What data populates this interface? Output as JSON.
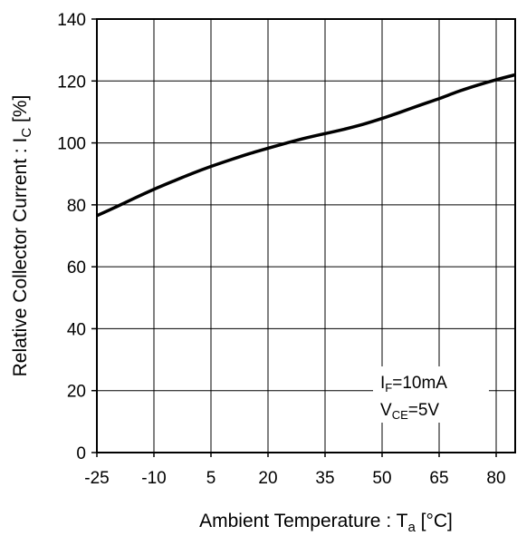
{
  "chart_data": {
    "type": "line",
    "title": "",
    "xlabel": {
      "main": "Ambient Temperature : T",
      "sub": "a",
      "unit": " [°C]"
    },
    "ylabel": {
      "main": "Relative Collector Current : I",
      "sub": "C",
      "unit": " [%]"
    },
    "xlim": [
      -25,
      85
    ],
    "ylim": [
      0,
      140
    ],
    "xticks": [
      -25,
      -10,
      5,
      20,
      35,
      50,
      65,
      80
    ],
    "yticks": [
      0,
      20,
      40,
      60,
      80,
      100,
      120,
      140
    ],
    "grid": true,
    "legend": "none",
    "annotation": {
      "line1_main": "I",
      "line1_sub": "F",
      "line1_rest": "=10mA",
      "line2_main": "V",
      "line2_sub": "CE",
      "line2_rest": "=5V"
    },
    "series": [
      {
        "color": "#000000",
        "x": [
          -25,
          -20,
          -15,
          -10,
          -5,
          0,
          5,
          10,
          15,
          20,
          25,
          30,
          35,
          40,
          45,
          50,
          55,
          60,
          65,
          70,
          75,
          80,
          85
        ],
        "y": [
          76.5,
          79.3,
          82.2,
          85.0,
          87.6,
          90.1,
          92.4,
          94.5,
          96.5,
          98.3,
          100.0,
          101.6,
          103.0,
          104.4,
          106.0,
          107.9,
          110.0,
          112.2,
          114.3,
          116.6,
          118.6,
          120.4,
          122.0
        ]
      }
    ]
  }
}
